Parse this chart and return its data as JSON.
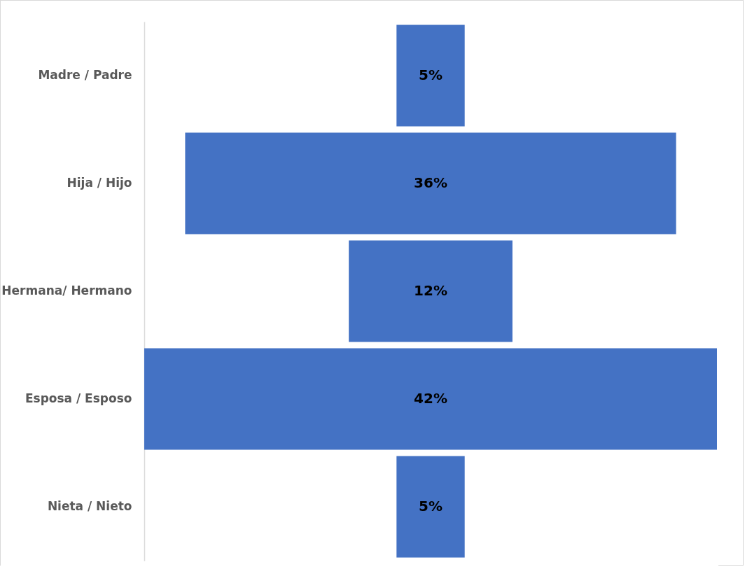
{
  "chart_data": {
    "type": "other",
    "categories": [
      "Madre / Padre",
      "Hija / Hijo",
      "Hermana/ Hermano",
      "Esposa / Esposo",
      "Nieta / Nieto"
    ],
    "values": [
      5,
      36,
      12,
      42,
      5
    ],
    "value_labels": [
      "5%",
      "36%",
      "12%",
      "42%",
      "5%"
    ],
    "color": "#4472c4"
  }
}
